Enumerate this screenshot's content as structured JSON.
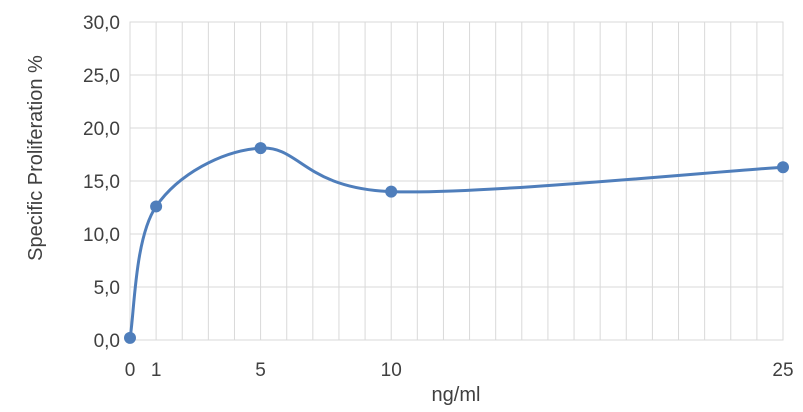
{
  "chart_data": {
    "type": "line",
    "xlabel": "ng/ml",
    "ylabel": "Specific Proliferation %",
    "xlim": [
      0,
      25
    ],
    "ylim": [
      0,
      30
    ],
    "x_ticks": [
      0,
      1,
      5,
      10,
      25
    ],
    "x_tick_labels": [
      "0",
      "1",
      "5",
      "10",
      "25"
    ],
    "y_ticks": [
      0,
      5,
      10,
      15,
      20,
      25,
      30
    ],
    "y_tick_labels": [
      "0,0",
      "5,0",
      "10,0",
      "15,0",
      "20,0",
      "25,0",
      "30,0"
    ],
    "grid": true,
    "smooth": true,
    "series": [
      {
        "color": "#4F7EBB",
        "x": [
          0,
          1,
          5,
          10,
          25
        ],
        "y": [
          0.2,
          12.6,
          18.1,
          14.0,
          16.3
        ]
      }
    ]
  }
}
